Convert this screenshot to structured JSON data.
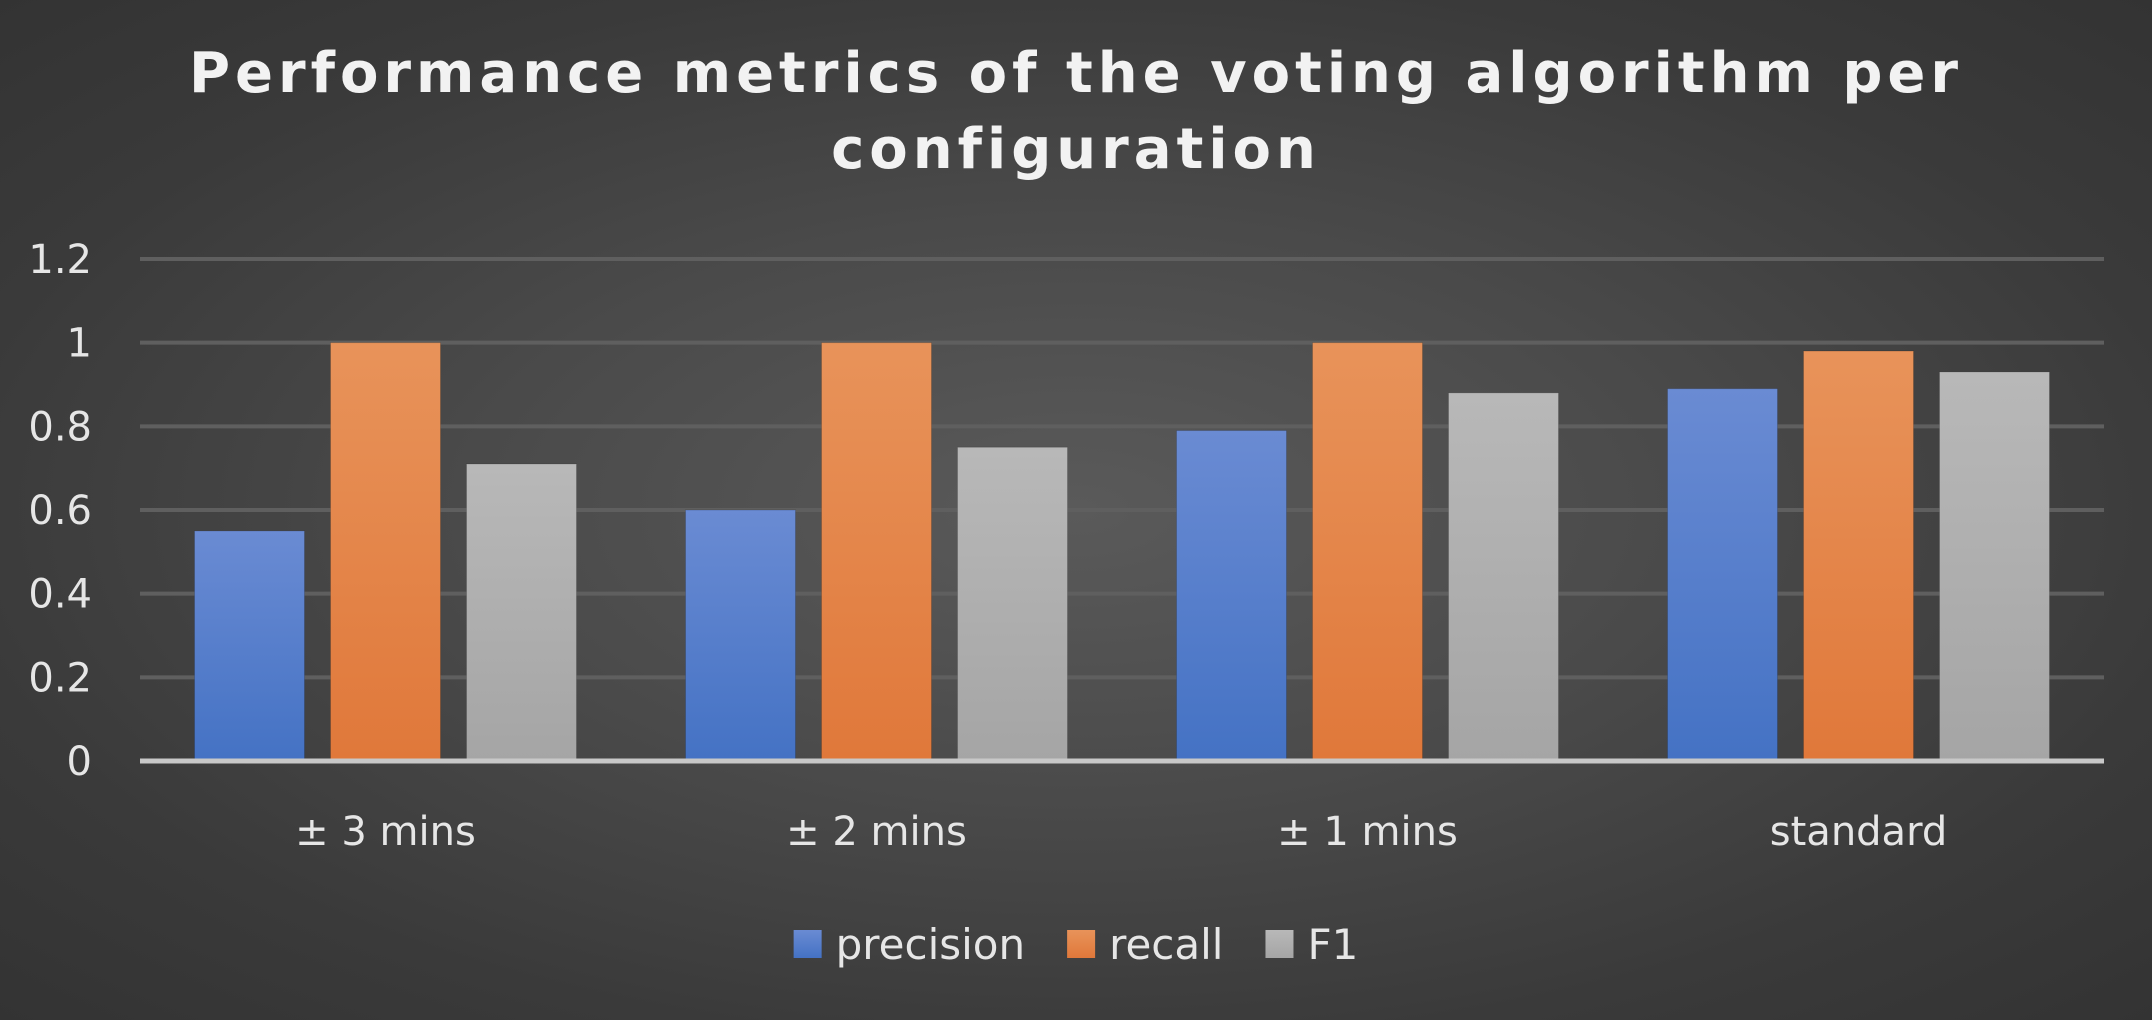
{
  "chart_data": {
    "type": "bar",
    "title_lines": [
      "Performance metrics of the voting algorithm per",
      "configuration"
    ],
    "categories": [
      "± 3 mins",
      "± 2 mins",
      "± 1 mins",
      "standard"
    ],
    "series": [
      {
        "name": "precision",
        "values": [
          0.55,
          0.6,
          0.79,
          0.89
        ],
        "color": "#4472c4",
        "color_light": "#6a8bd3"
      },
      {
        "name": "recall",
        "values": [
          1.0,
          1.0,
          1.0,
          0.98
        ],
        "color": "#e0783a",
        "color_light": "#e8935a"
      },
      {
        "name": "F1",
        "values": [
          0.71,
          0.75,
          0.88,
          0.93
        ],
        "color": "#a5a5a5",
        "color_light": "#b8b8b8"
      }
    ],
    "y_ticks": [
      "0",
      "0.2",
      "0.4",
      "0.6",
      "0.8",
      "1",
      "1.2"
    ],
    "ylim": [
      0,
      1.2
    ],
    "grid": true,
    "legend_position": "bottom",
    "xlabel": "",
    "ylabel": ""
  }
}
